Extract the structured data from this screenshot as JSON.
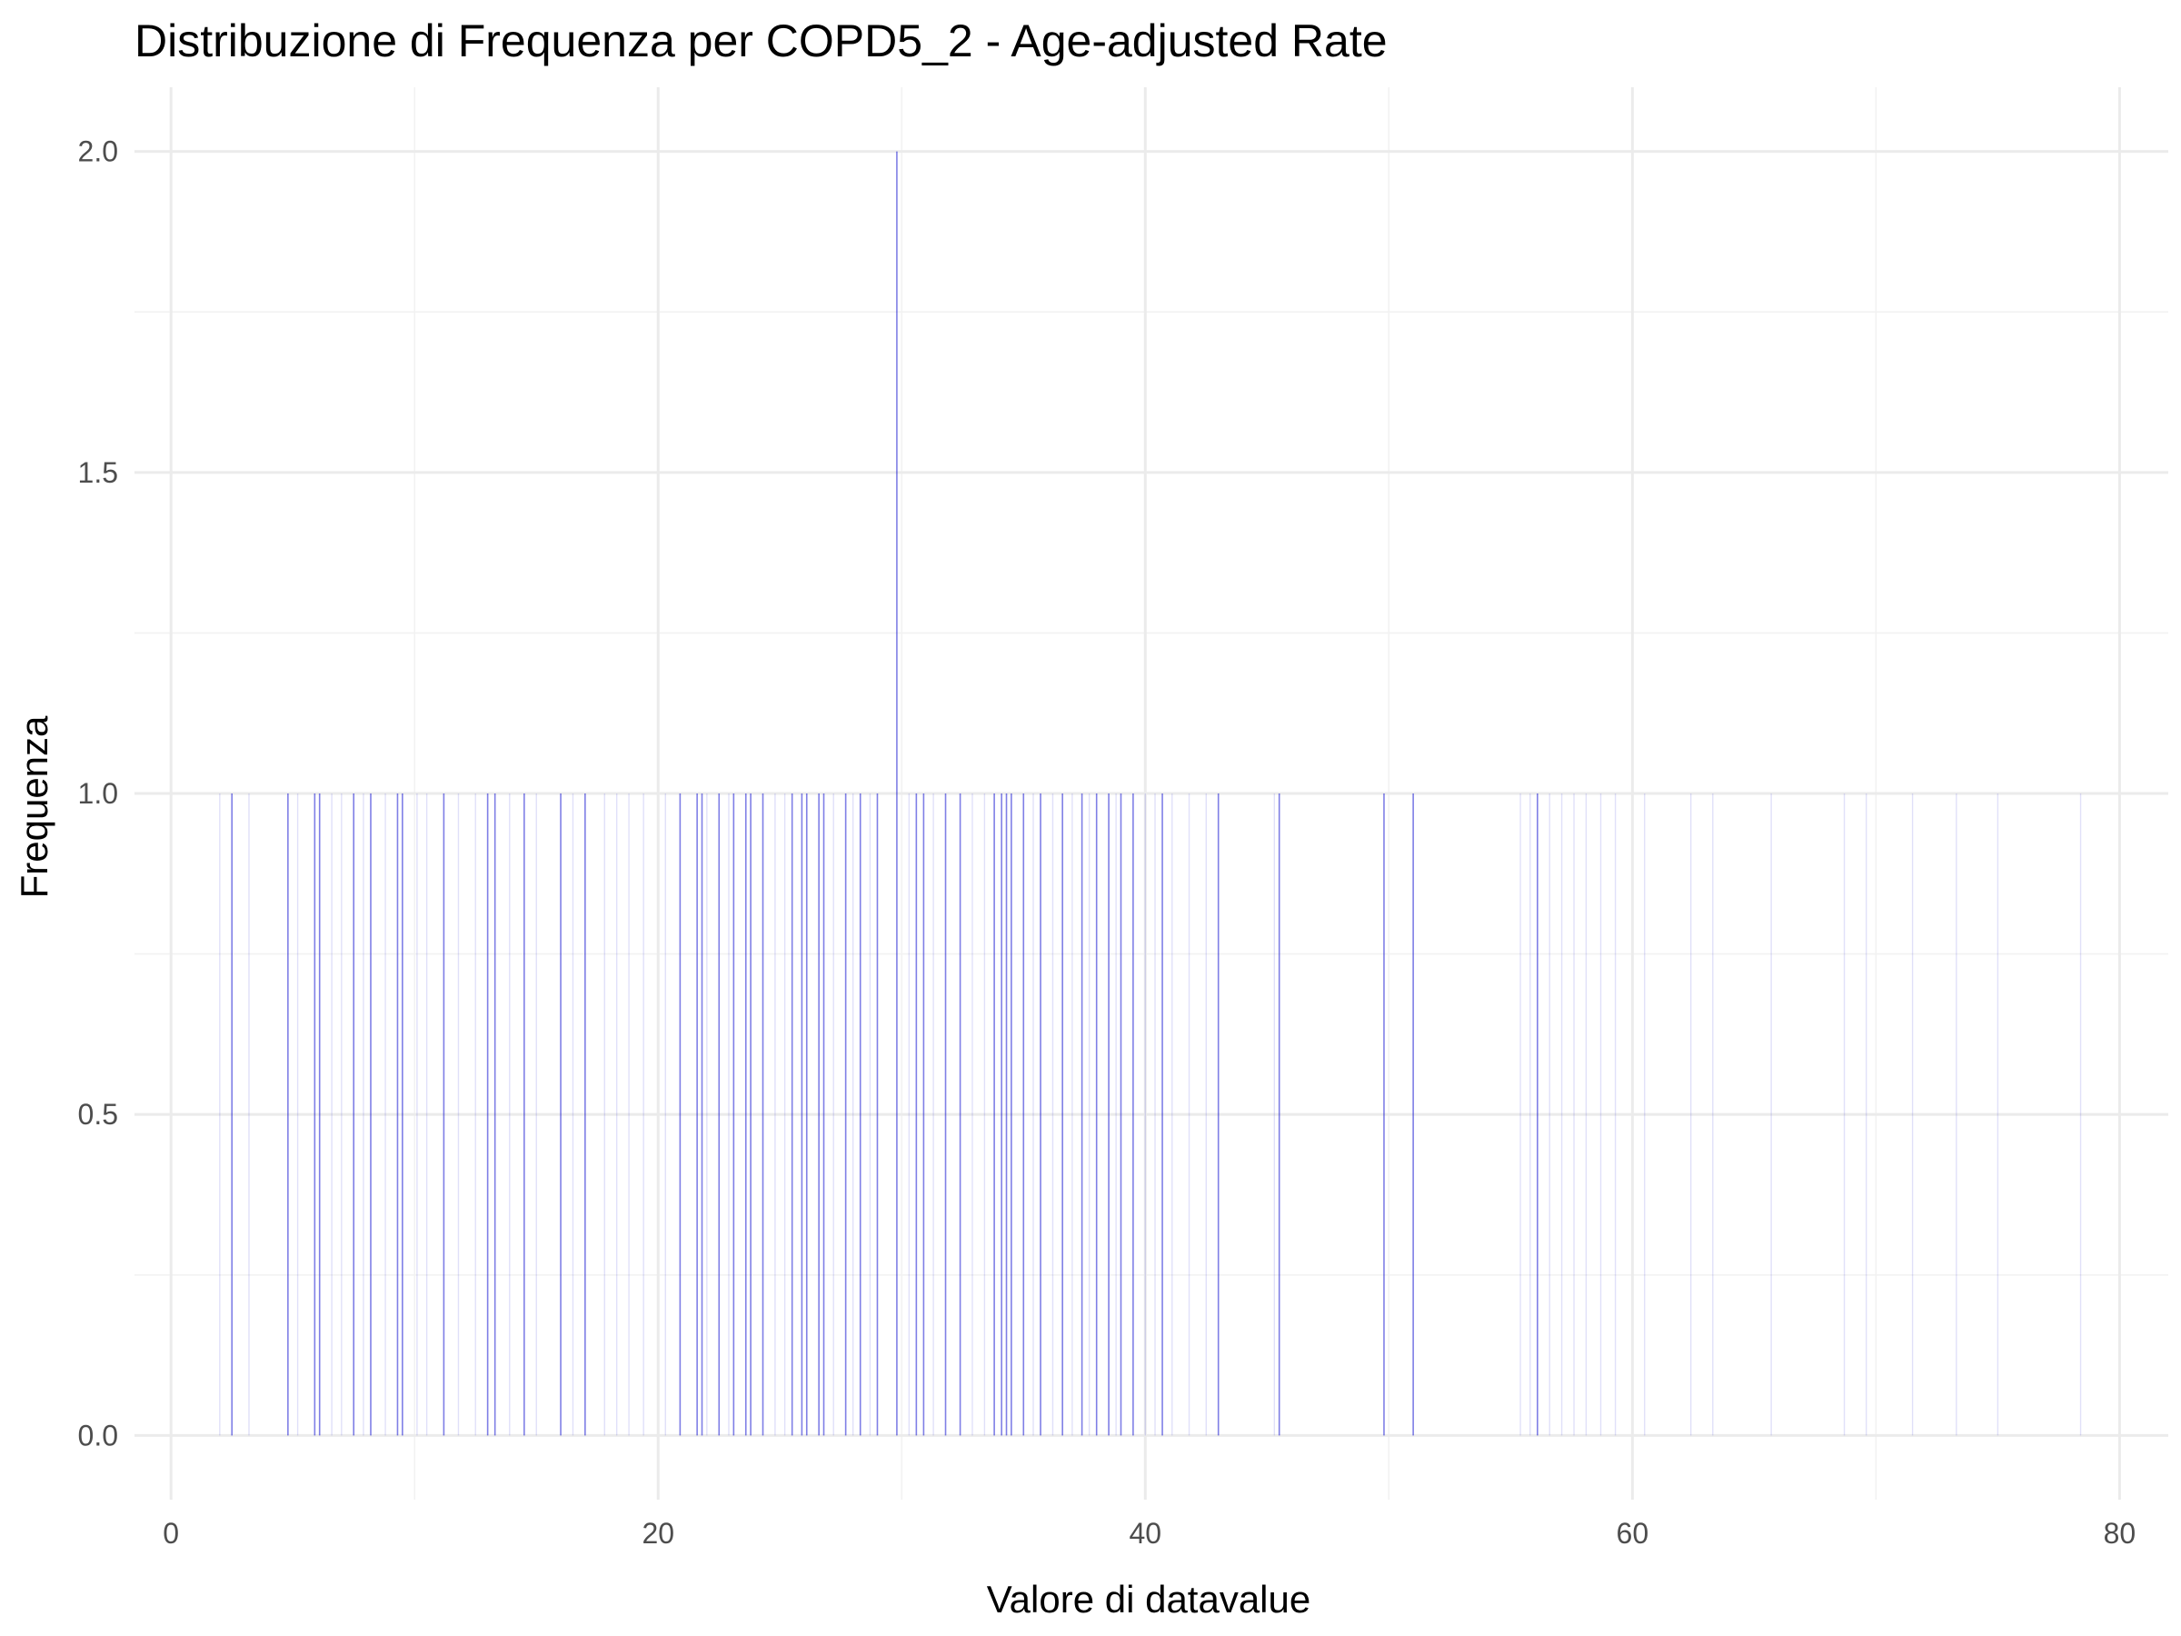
{
  "chart_data": {
    "type": "histogram",
    "title": "Distribuzione di Frequenza per COPD5_2 - Age-adjusted Rate",
    "xlabel": "Valore di datavalue",
    "ylabel": "Frequenza",
    "xlim": [
      -1.5,
      82
    ],
    "ylim": [
      -0.1,
      2.1
    ],
    "x_ticks": [
      0,
      20,
      40,
      60,
      80
    ],
    "x_tick_labels": [
      "0",
      "20",
      "40",
      "60",
      "80"
    ],
    "y_ticks": [
      0.0,
      0.5,
      1.0,
      1.5,
      2.0
    ],
    "y_tick_labels": [
      "0.0",
      "0.5",
      "1.0",
      "1.5",
      "2.0"
    ],
    "grid": true,
    "bar_color": "#0000cd",
    "bar_alpha": 0.5,
    "bins": [
      {
        "x": 2.5,
        "count": 1
      },
      {
        "x": 4.8,
        "count": 1
      },
      {
        "x": 5.9,
        "count": 1
      },
      {
        "x": 6.1,
        "count": 1
      },
      {
        "x": 7.5,
        "count": 1
      },
      {
        "x": 8.2,
        "count": 1
      },
      {
        "x": 9.3,
        "count": 1
      },
      {
        "x": 9.5,
        "count": 1
      },
      {
        "x": 11.2,
        "count": 1
      },
      {
        "x": 13.0,
        "count": 1
      },
      {
        "x": 13.3,
        "count": 1
      },
      {
        "x": 14.5,
        "count": 1
      },
      {
        "x": 16.0,
        "count": 1
      },
      {
        "x": 17.0,
        "count": 1
      },
      {
        "x": 20.9,
        "count": 1
      },
      {
        "x": 21.6,
        "count": 1
      },
      {
        "x": 21.8,
        "count": 1
      },
      {
        "x": 22.5,
        "count": 1
      },
      {
        "x": 23.1,
        "count": 1
      },
      {
        "x": 23.6,
        "count": 1
      },
      {
        "x": 23.8,
        "count": 1
      },
      {
        "x": 24.3,
        "count": 1
      },
      {
        "x": 25.5,
        "count": 1
      },
      {
        "x": 25.9,
        "count": 1
      },
      {
        "x": 26.1,
        "count": 1
      },
      {
        "x": 26.6,
        "count": 1
      },
      {
        "x": 26.8,
        "count": 1
      },
      {
        "x": 27.7,
        "count": 1
      },
      {
        "x": 28.3,
        "count": 1
      },
      {
        "x": 29.0,
        "count": 1
      },
      {
        "x": 29.8,
        "count": 2
      },
      {
        "x": 30.6,
        "count": 1
      },
      {
        "x": 30.9,
        "count": 1
      },
      {
        "x": 31.8,
        "count": 1
      },
      {
        "x": 32.4,
        "count": 1
      },
      {
        "x": 33.8,
        "count": 1
      },
      {
        "x": 34.1,
        "count": 1
      },
      {
        "x": 34.3,
        "count": 1
      },
      {
        "x": 34.5,
        "count": 1
      },
      {
        "x": 35.0,
        "count": 1
      },
      {
        "x": 35.7,
        "count": 1
      },
      {
        "x": 36.6,
        "count": 1
      },
      {
        "x": 37.4,
        "count": 1
      },
      {
        "x": 38.0,
        "count": 1
      },
      {
        "x": 38.5,
        "count": 1
      },
      {
        "x": 39.0,
        "count": 1
      },
      {
        "x": 39.5,
        "count": 1
      },
      {
        "x": 40.7,
        "count": 1
      },
      {
        "x": 43.0,
        "count": 1
      },
      {
        "x": 45.5,
        "count": 1
      },
      {
        "x": 49.8,
        "count": 1
      },
      {
        "x": 51.0,
        "count": 1
      },
      {
        "x": 56.1,
        "count": 1
      }
    ],
    "faint_bins": [
      {
        "x": 2.0,
        "count": 1
      },
      {
        "x": 3.2,
        "count": 1
      },
      {
        "x": 5.2,
        "count": 1
      },
      {
        "x": 6.6,
        "count": 1
      },
      {
        "x": 7.0,
        "count": 1
      },
      {
        "x": 7.9,
        "count": 1
      },
      {
        "x": 8.8,
        "count": 1
      },
      {
        "x": 10.1,
        "count": 1
      },
      {
        "x": 10.5,
        "count": 1
      },
      {
        "x": 11.8,
        "count": 1
      },
      {
        "x": 12.5,
        "count": 1
      },
      {
        "x": 13.9,
        "count": 1
      },
      {
        "x": 15.0,
        "count": 1
      },
      {
        "x": 16.5,
        "count": 1
      },
      {
        "x": 17.8,
        "count": 1
      },
      {
        "x": 18.3,
        "count": 1
      },
      {
        "x": 18.8,
        "count": 1
      },
      {
        "x": 19.4,
        "count": 1
      },
      {
        "x": 20.3,
        "count": 1
      },
      {
        "x": 22.0,
        "count": 1
      },
      {
        "x": 22.9,
        "count": 1
      },
      {
        "x": 24.8,
        "count": 1
      },
      {
        "x": 25.2,
        "count": 1
      },
      {
        "x": 27.2,
        "count": 1
      },
      {
        "x": 28.0,
        "count": 1
      },
      {
        "x": 28.7,
        "count": 1
      },
      {
        "x": 30.3,
        "count": 1
      },
      {
        "x": 31.3,
        "count": 1
      },
      {
        "x": 32.9,
        "count": 1
      },
      {
        "x": 33.4,
        "count": 1
      },
      {
        "x": 35.4,
        "count": 1
      },
      {
        "x": 36.2,
        "count": 1
      },
      {
        "x": 37.0,
        "count": 1
      },
      {
        "x": 37.7,
        "count": 1
      },
      {
        "x": 38.8,
        "count": 1
      },
      {
        "x": 40.0,
        "count": 1
      },
      {
        "x": 40.4,
        "count": 1
      },
      {
        "x": 41.1,
        "count": 1
      },
      {
        "x": 41.8,
        "count": 1
      },
      {
        "x": 42.5,
        "count": 1
      },
      {
        "x": 45.3,
        "count": 1
      },
      {
        "x": 55.4,
        "count": 1
      },
      {
        "x": 55.8,
        "count": 1
      },
      {
        "x": 56.6,
        "count": 1
      },
      {
        "x": 57.1,
        "count": 1
      },
      {
        "x": 57.6,
        "count": 1
      },
      {
        "x": 58.1,
        "count": 1
      },
      {
        "x": 58.7,
        "count": 1
      },
      {
        "x": 59.3,
        "count": 1
      },
      {
        "x": 60.5,
        "count": 1
      },
      {
        "x": 62.4,
        "count": 1
      },
      {
        "x": 63.3,
        "count": 1
      },
      {
        "x": 65.7,
        "count": 1
      },
      {
        "x": 68.7,
        "count": 1
      },
      {
        "x": 69.6,
        "count": 1
      },
      {
        "x": 71.5,
        "count": 1
      },
      {
        "x": 73.3,
        "count": 1
      },
      {
        "x": 75.0,
        "count": 1
      },
      {
        "x": 78.4,
        "count": 1
      }
    ]
  }
}
